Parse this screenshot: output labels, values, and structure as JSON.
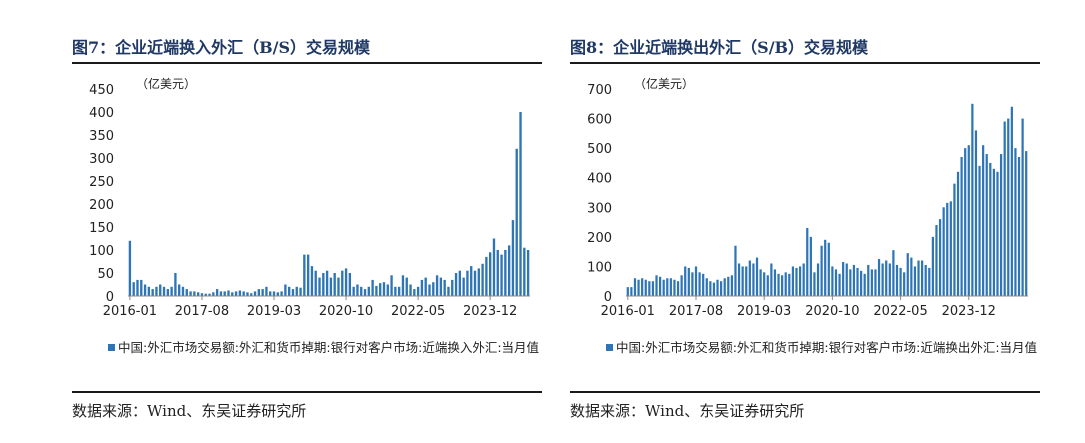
{
  "colors": {
    "bar": "#2e75b6",
    "title": "#1f3864",
    "rule": "#1a1a1a"
  },
  "source": "数据来源：Wind、东吴证券研究所",
  "chart_data": [
    {
      "type": "bar",
      "title": "图7：企业近端换入外汇（B/S）交易规模",
      "unit": "（亿美元）",
      "ylim": [
        0,
        450
      ],
      "yticks": [
        "450",
        "400",
        "350",
        "300",
        "250",
        "200",
        "150",
        "100",
        "50",
        "0"
      ],
      "xticks": [
        "2016-01",
        "2017-08",
        "2019-03",
        "2020-10",
        "2022-05",
        "2023-12"
      ],
      "xtick_index": [
        0,
        19,
        38,
        57,
        76,
        95
      ],
      "grid": false,
      "legend": "中国:外汇市场交易额:外汇和货币掉期:银行对客户市场:近端换入外汇:当月值",
      "values": [
        120,
        30,
        35,
        35,
        25,
        20,
        15,
        20,
        25,
        20,
        15,
        20,
        50,
        25,
        20,
        15,
        10,
        10,
        8,
        6,
        5,
        5,
        8,
        15,
        10,
        10,
        12,
        8,
        10,
        12,
        10,
        8,
        6,
        10,
        15,
        15,
        20,
        10,
        10,
        8,
        10,
        25,
        20,
        15,
        20,
        18,
        90,
        90,
        65,
        55,
        40,
        50,
        55,
        40,
        50,
        40,
        55,
        60,
        50,
        20,
        25,
        20,
        15,
        20,
        35,
        22,
        28,
        30,
        25,
        45,
        20,
        20,
        45,
        40,
        25,
        15,
        20,
        35,
        40,
        25,
        30,
        45,
        40,
        35,
        20,
        35,
        50,
        55,
        40,
        55,
        65,
        55,
        60,
        70,
        85,
        95,
        125,
        100,
        90,
        100,
        110,
        165,
        320,
        400,
        105,
        100
      ]
    },
    {
      "type": "bar",
      "title": "图8：企业近端换出外汇（S/B）交易规模",
      "unit": "（亿美元）",
      "ylim": [
        0,
        700
      ],
      "yticks": [
        "700",
        "600",
        "500",
        "400",
        "300",
        "200",
        "100",
        "0"
      ],
      "xticks": [
        "2016-01",
        "2017-08",
        "2019-03",
        "2020-10",
        "2022-05",
        "2023-12"
      ],
      "xtick_index": [
        0,
        19,
        38,
        57,
        76,
        95
      ],
      "grid": false,
      "legend": "中国:外汇市场交易额:外汇和货币掉期:银行对客户市场:近端换出外汇:当月值",
      "values": [
        30,
        30,
        60,
        55,
        60,
        55,
        50,
        50,
        70,
        65,
        55,
        60,
        60,
        55,
        50,
        70,
        100,
        95,
        80,
        100,
        80,
        75,
        60,
        50,
        45,
        55,
        50,
        60,
        65,
        70,
        170,
        110,
        100,
        100,
        120,
        110,
        130,
        90,
        80,
        70,
        110,
        90,
        75,
        70,
        80,
        75,
        100,
        95,
        100,
        110,
        230,
        200,
        80,
        110,
        170,
        190,
        180,
        100,
        90,
        75,
        115,
        110,
        90,
        105,
        95,
        85,
        75,
        105,
        90,
        90,
        125,
        110,
        120,
        110,
        155,
        105,
        95,
        80,
        145,
        130,
        100,
        120,
        120,
        105,
        95,
        200,
        240,
        260,
        300,
        315,
        320,
        380,
        420,
        470,
        500,
        510,
        650,
        560,
        440,
        510,
        480,
        450,
        430,
        420,
        480,
        590,
        600,
        640,
        500,
        470,
        600,
        490
      ]
    }
  ]
}
